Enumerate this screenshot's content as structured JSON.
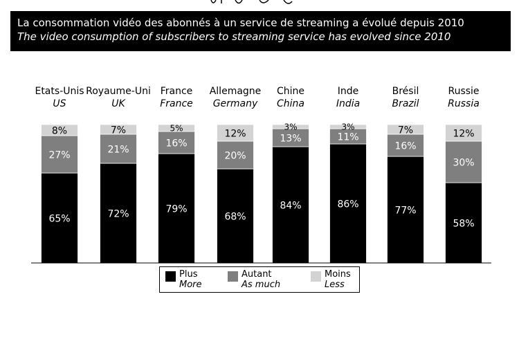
{
  "title": {
    "line1": "La consommation vidéo des abonnés à un service de streaming a évolué depuis 2010",
    "line2": "The video consumption of subscribers to streaming service has evolved since 2010"
  },
  "colors": {
    "plus": "#000000",
    "autant": "#7f7f7f",
    "moins": "#d3d3d3",
    "title_bg": "#000000"
  },
  "chart_data": {
    "type": "bar",
    "stacked": true,
    "orientation": "vertical",
    "categories": [
      {
        "fr": "Etats-Unis",
        "en": "US"
      },
      {
        "fr": "Royaume-Uni",
        "en": "UK"
      },
      {
        "fr": "France",
        "en": "France"
      },
      {
        "fr": "Allemagne",
        "en": "Germany"
      },
      {
        "fr": "Chine",
        "en": "China"
      },
      {
        "fr": "Inde",
        "en": "India"
      },
      {
        "fr": "Brésil",
        "en": "Brazil"
      },
      {
        "fr": "Russie",
        "en": "Russia"
      }
    ],
    "series": [
      {
        "name": "Plus",
        "name_en": "More",
        "values": [
          65,
          72,
          79,
          68,
          84,
          86,
          77,
          58
        ]
      },
      {
        "name": "Autant",
        "name_en": "As much",
        "values": [
          27,
          21,
          16,
          20,
          13,
          11,
          16,
          30
        ]
      },
      {
        "name": "Moins",
        "name_en": "Less",
        "values": [
          8,
          7,
          5,
          12,
          3,
          3,
          7,
          12
        ]
      }
    ],
    "value_suffix": "%",
    "ylim": [
      0,
      100
    ],
    "grid": false,
    "legend_position": "bottom-center"
  }
}
